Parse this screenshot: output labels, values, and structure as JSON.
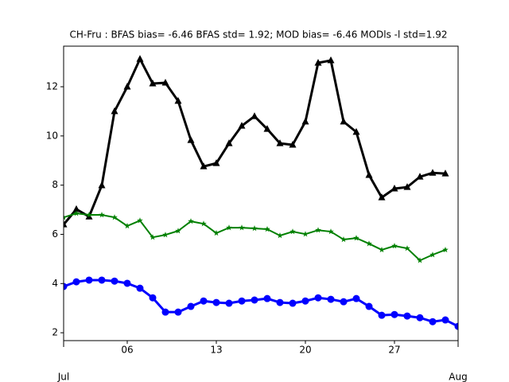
{
  "chart_data": {
    "type": "line",
    "title": "CH-Fru   : BFAS bias= -6.46 BFAS std= 1.92; MOD bias= -6.46 MODls -l std=1.92",
    "xlim": [
      1,
      32
    ],
    "ylim": [
      1.68,
      13.65
    ],
    "yticks": [
      2,
      4,
      6,
      8,
      10,
      12
    ],
    "xticks": [
      {
        "value": 6,
        "label": "06"
      },
      {
        "value": 13,
        "label": "13"
      },
      {
        "value": 20,
        "label": "20"
      },
      {
        "value": 27,
        "label": "27"
      }
    ],
    "xticks_month": [
      {
        "value": 1,
        "label": "Jul"
      },
      {
        "value": 32,
        "label": "Aug"
      }
    ],
    "series": [
      {
        "color": "#000000",
        "marker": "triangle",
        "width": 3,
        "x": [
          1,
          2,
          3,
          4,
          5,
          6,
          7,
          8,
          9,
          10,
          11,
          12,
          13,
          14,
          15,
          16,
          17,
          18,
          19,
          20,
          21,
          22,
          23,
          24,
          25,
          26,
          27,
          28,
          29,
          30,
          31
        ],
        "values": [
          6.4,
          7.02,
          6.72,
          7.99,
          11.0,
          12.0,
          13.13,
          12.13,
          12.16,
          11.42,
          9.83,
          8.76,
          8.89,
          9.7,
          10.41,
          10.8,
          10.28,
          9.7,
          9.64,
          10.58,
          12.97,
          13.07,
          10.58,
          10.16,
          8.41,
          7.5,
          7.86,
          7.92,
          8.34,
          8.5,
          8.47
        ]
      },
      {
        "color": "#008000",
        "marker": "star",
        "width": 2,
        "x": [
          1,
          2,
          3,
          4,
          5,
          6,
          7,
          8,
          9,
          10,
          11,
          12,
          13,
          14,
          15,
          16,
          17,
          18,
          19,
          20,
          21,
          22,
          23,
          24,
          25,
          26,
          27,
          28,
          29,
          30,
          31
        ],
        "values": [
          6.69,
          6.85,
          6.79,
          6.79,
          6.69,
          6.34,
          6.56,
          5.88,
          5.98,
          6.14,
          6.53,
          6.43,
          6.05,
          6.27,
          6.27,
          6.24,
          6.21,
          5.95,
          6.11,
          6.01,
          6.17,
          6.11,
          5.79,
          5.85,
          5.62,
          5.37,
          5.53,
          5.43,
          4.94,
          5.17,
          5.37
        ]
      },
      {
        "color": "#0000ff",
        "marker": "circle",
        "width": 3,
        "x": [
          1,
          2,
          3,
          4,
          5,
          6,
          7,
          8,
          9,
          10,
          11,
          12,
          13,
          14,
          15,
          16,
          17,
          18,
          19,
          20,
          21,
          22,
          23,
          24,
          25,
          26,
          27,
          28,
          29,
          30,
          31,
          32
        ],
        "values": [
          3.88,
          4.07,
          4.14,
          4.14,
          4.1,
          4.01,
          3.81,
          3.42,
          2.84,
          2.84,
          3.07,
          3.29,
          3.23,
          3.2,
          3.29,
          3.33,
          3.39,
          3.23,
          3.2,
          3.29,
          3.42,
          3.36,
          3.26,
          3.39,
          3.07,
          2.71,
          2.74,
          2.68,
          2.61,
          2.45,
          2.52,
          2.26
        ]
      }
    ]
  }
}
